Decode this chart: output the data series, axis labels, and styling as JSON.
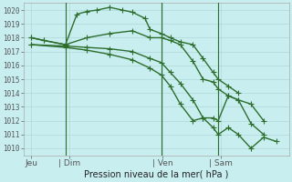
{
  "title": "Pression niveau de la mer( hPa )",
  "bg_color": "#c8eef0",
  "grid_color": "#b0d8d8",
  "line_color": "#2d6e2d",
  "vline_color": "#2d6e2d",
  "ylim": [
    1009.5,
    1020.5
  ],
  "xlim": [
    0,
    10.5
  ],
  "yticks": [
    1010,
    1011,
    1012,
    1013,
    1014,
    1015,
    1016,
    1017,
    1018,
    1019,
    1020
  ],
  "xtick_labels": [
    "Jeu",
    "| Dim",
    "| Ven",
    "| Sam"
  ],
  "xtick_positions": [
    0.3,
    1.8,
    5.5,
    7.8
  ],
  "vlines": [
    1.65,
    5.45,
    7.7
  ],
  "lines": [
    {
      "x": [
        0.3,
        0.8,
        1.65,
        2.1,
        2.5,
        2.9,
        3.4,
        3.9,
        4.3,
        4.8,
        5.0,
        5.45,
        5.8,
        6.2,
        6.7,
        7.1,
        7.5,
        7.7,
        8.1,
        8.5
      ],
      "y": [
        1018.0,
        1017.8,
        1017.5,
        1019.7,
        1019.9,
        1020.0,
        1020.2,
        1020.0,
        1019.85,
        1019.4,
        1018.6,
        1018.3,
        1018.0,
        1017.7,
        1017.5,
        1016.5,
        1015.5,
        1015.0,
        1014.5,
        1014.0
      ]
    },
    {
      "x": [
        0.3,
        0.8,
        1.65,
        2.5,
        3.4,
        4.3,
        5.0,
        5.45,
        5.8,
        6.2,
        6.7,
        7.1,
        7.5,
        7.7,
        8.1,
        8.5,
        9.0,
        9.5
      ],
      "y": [
        1018.0,
        1017.8,
        1017.5,
        1018.0,
        1018.3,
        1018.5,
        1018.0,
        1018.0,
        1017.8,
        1017.5,
        1016.3,
        1015.0,
        1014.8,
        1014.3,
        1013.8,
        1013.5,
        1013.2,
        1012.0
      ]
    },
    {
      "x": [
        0.3,
        1.65,
        2.5,
        3.4,
        4.3,
        5.0,
        5.45,
        5.8,
        6.2,
        6.7,
        7.1,
        7.5,
        7.7,
        8.1,
        8.5,
        9.0,
        9.5
      ],
      "y": [
        1017.5,
        1017.4,
        1017.3,
        1017.2,
        1017.0,
        1016.5,
        1016.2,
        1015.5,
        1014.7,
        1013.5,
        1012.2,
        1012.2,
        1012.0,
        1013.8,
        1013.5,
        1011.8,
        1011.0
      ]
    },
    {
      "x": [
        0.3,
        1.65,
        2.5,
        3.4,
        4.3,
        5.0,
        5.45,
        5.8,
        6.2,
        6.7,
        7.1,
        7.5,
        7.7,
        8.1,
        8.5,
        9.0,
        9.5,
        10.0
      ],
      "y": [
        1017.5,
        1017.3,
        1017.1,
        1016.8,
        1016.4,
        1015.8,
        1015.3,
        1014.5,
        1013.2,
        1012.0,
        1012.2,
        1011.5,
        1011.0,
        1011.5,
        1011.0,
        1010.0,
        1010.8,
        1010.5
      ]
    }
  ],
  "marker": "+",
  "markersize": 4,
  "linewidth": 1.0
}
